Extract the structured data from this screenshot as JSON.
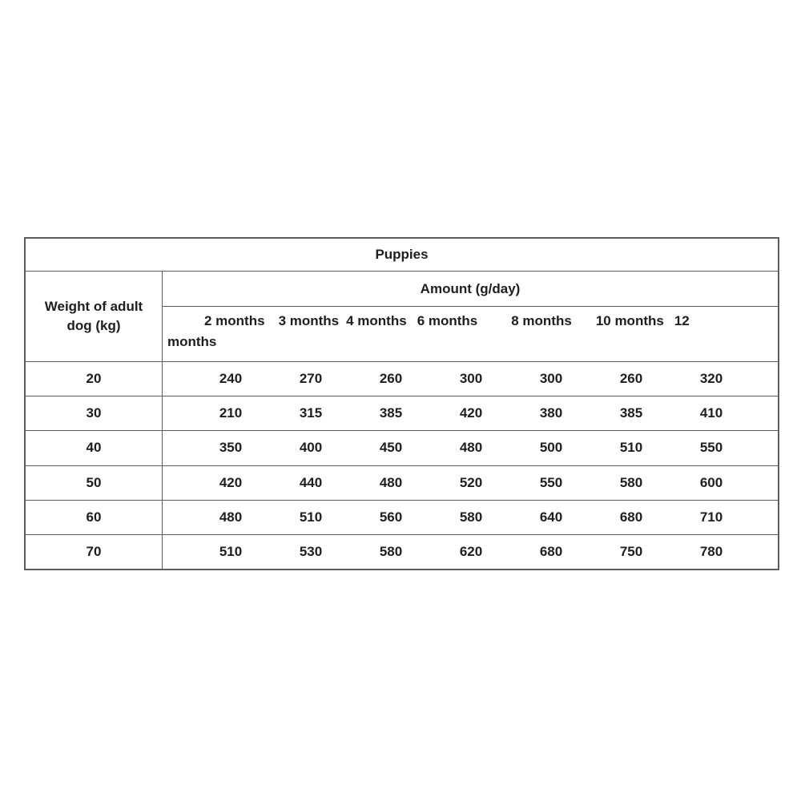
{
  "chart_data": {
    "type": "table",
    "title": "Puppies",
    "row_header": "Weight of adult dog (kg)",
    "group_header": "Amount (g/day)",
    "columns": [
      "2 months",
      "3 months",
      "4 months",
      "6 months",
      "8 months",
      "10 months",
      "12 months"
    ],
    "header_display": {
      "line1_labels": [
        "2 months",
        "3 months",
        "4 months",
        "6 months",
        "8 months",
        "10 months",
        "12"
      ],
      "line2": "months"
    },
    "rows": [
      {
        "weight": "20",
        "values": [
          "240",
          "270",
          "260",
          "300",
          "300",
          "260",
          "320"
        ]
      },
      {
        "weight": "30",
        "values": [
          "210",
          "315",
          "385",
          "420",
          "380",
          "385",
          "410"
        ]
      },
      {
        "weight": "40",
        "values": [
          "350",
          "400",
          "450",
          "480",
          "500",
          "510",
          "550"
        ]
      },
      {
        "weight": "50",
        "values": [
          "420",
          "440",
          "480",
          "520",
          "550",
          "580",
          "600"
        ]
      },
      {
        "weight": "60",
        "values": [
          "480",
          "510",
          "560",
          "580",
          "640",
          "680",
          "710"
        ]
      },
      {
        "weight": "70",
        "values": [
          "510",
          "530",
          "580",
          "620",
          "680",
          "750",
          "780"
        ]
      }
    ],
    "colors": {
      "text": "#1e1e1e",
      "border": "#5c5c5c",
      "background": "#ffffff"
    }
  }
}
